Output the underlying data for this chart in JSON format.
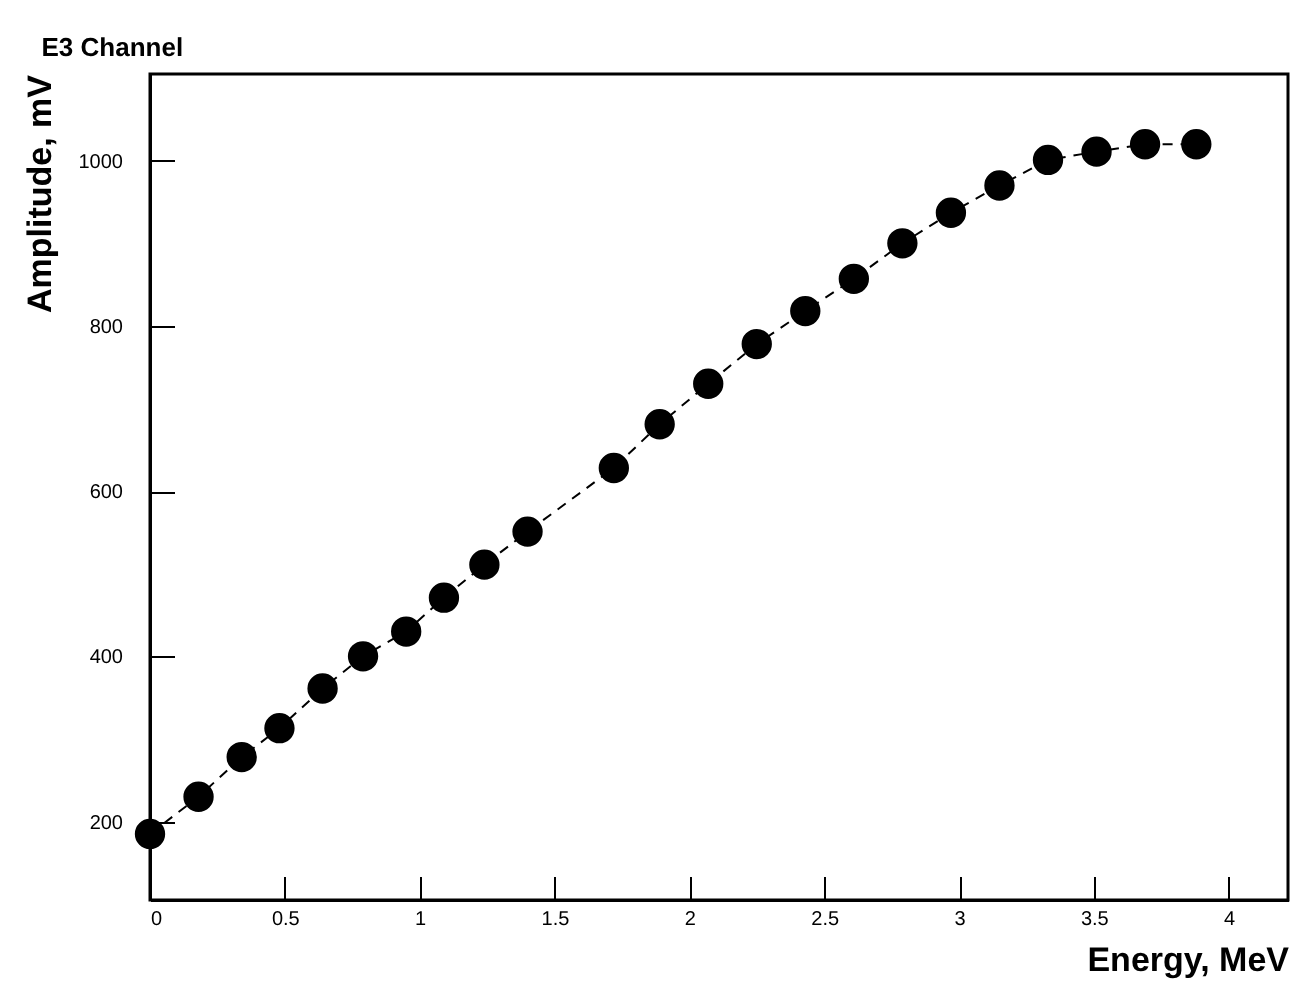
{
  "chart_data": {
    "type": "line",
    "title": "E3 Channel",
    "xlabel": "Energy, MeV",
    "ylabel": "Amplitude, mV",
    "x": [
      0,
      0.18,
      0.34,
      0.48,
      0.64,
      0.79,
      0.95,
      1.09,
      1.24,
      1.4,
      1.72,
      1.89,
      2.07,
      2.25,
      2.43,
      2.61,
      2.79,
      2.97,
      3.15,
      3.33,
      3.51,
      3.69,
      3.88
    ],
    "series": [
      {
        "color": "#000000",
        "values": [
          185,
          230,
          278,
          313,
          361,
          400,
          430,
          471,
          511,
          551,
          628,
          681,
          730,
          778,
          818,
          857,
          900,
          937,
          970,
          1001,
          1011,
          1020,
          1020
        ]
      }
    ],
    "xlim": [
      0,
      4.22
    ],
    "ylim": [
      105,
      1105
    ],
    "xticks": [
      0,
      0.5,
      1,
      1.5,
      2,
      2.5,
      3,
      3.5,
      4
    ],
    "yticks": [
      200,
      400,
      600,
      800,
      1000
    ],
    "grid": false,
    "legend": false,
    "marker": "circle",
    "line_style": "dashed"
  }
}
